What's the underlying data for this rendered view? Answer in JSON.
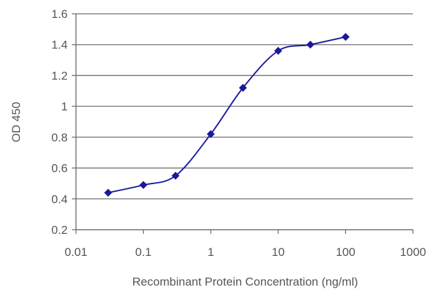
{
  "chart_data": {
    "type": "line",
    "title": "",
    "xlabel": "Recombinant Protein Concentration (ng/ml)",
    "ylabel": "OD 450",
    "x_scale": "log",
    "xlim": [
      0.01,
      1000
    ],
    "ylim": [
      0.2,
      1.6
    ],
    "x_ticks": [
      "0.01",
      "0.1",
      "1",
      "10",
      "100",
      "1000"
    ],
    "y_ticks": [
      "0.2",
      "0.4",
      "0.6",
      "0.8",
      "1",
      "1.2",
      "1.4",
      "1.6"
    ],
    "grid": "horizontal",
    "legend": "none",
    "series": [
      {
        "x": [
          0.03,
          0.1,
          0.3,
          1,
          3,
          10,
          30,
          100
        ],
        "y": [
          0.44,
          0.49,
          0.55,
          0.82,
          1.12,
          1.36,
          1.4,
          1.45
        ]
      }
    ],
    "colors": {
      "line": "#1f1f9f",
      "marker": "#1a1a99",
      "grid": "#6e6e6e",
      "axis": "#6e6e6e",
      "text": "#555555"
    }
  }
}
